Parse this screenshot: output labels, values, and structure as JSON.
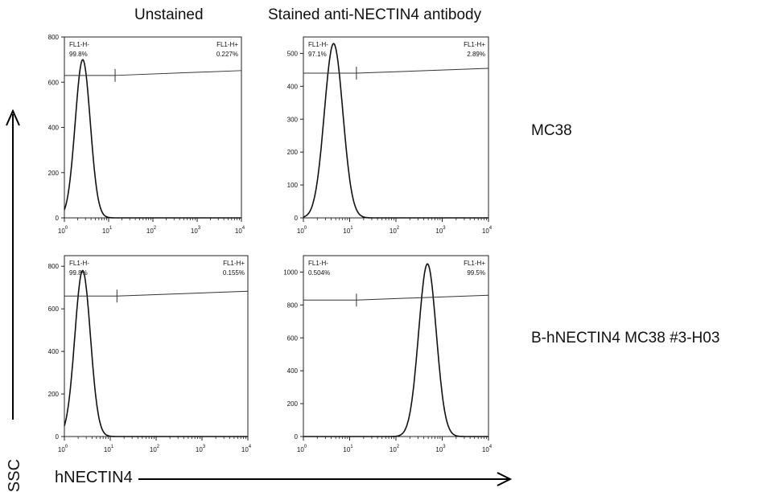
{
  "columns": [
    "Unstained",
    "Stained anti-NECTIN4 antibody"
  ],
  "rows": [
    "MC38",
    "B-hNECTIN4 MC38 #3-H03"
  ],
  "y_axis_note": "SSC",
  "x_axis_note": "hNECTIN4",
  "chart_data": [
    {
      "type": "histogram",
      "title": "",
      "row": "MC38",
      "column": "Unstained",
      "xscale": "log",
      "xlim": [
        1,
        10000
      ],
      "xticks": [
        "10",
        "10",
        "10",
        "10",
        "10"
      ],
      "xtick_exponents": [
        "0",
        "1",
        "2",
        "3",
        "4"
      ],
      "ylim": [
        0,
        800
      ],
      "yticks": [
        "0",
        "200",
        "400",
        "600",
        "800"
      ],
      "gate_threshold": 14,
      "gate_level": 630,
      "peak": {
        "center": 2.6,
        "height": 700,
        "width_decades": 0.17
      },
      "gates": [
        {
          "label": "FL1-H-",
          "percent": "99.8%"
        },
        {
          "label": "FL1-H+",
          "percent": "0.227%"
        }
      ]
    },
    {
      "type": "histogram",
      "title": "",
      "row": "MC38",
      "column": "Stained anti-NECTIN4 antibody",
      "xscale": "log",
      "xlim": [
        1,
        10000
      ],
      "xticks": [
        "10",
        "10",
        "10",
        "10",
        "10"
      ],
      "xtick_exponents": [
        "0",
        "1",
        "2",
        "3",
        "4"
      ],
      "ylim": [
        0,
        550
      ],
      "yticks": [
        "0",
        "100",
        "200",
        "300",
        "400",
        "500"
      ],
      "gate_threshold": 14,
      "gate_level": 440,
      "peak": {
        "center": 4.5,
        "height": 530,
        "width_decades": 0.2
      },
      "gates": [
        {
          "label": "FL1-H-",
          "percent": "97.1%"
        },
        {
          "label": "FL1-H+",
          "percent": "2.89%"
        }
      ]
    },
    {
      "type": "histogram",
      "title": "",
      "row": "B-hNECTIN4 MC38 #3-H03",
      "column": "Unstained",
      "xscale": "log",
      "xlim": [
        1,
        10000
      ],
      "xticks": [
        "10",
        "10",
        "10",
        "10",
        "10"
      ],
      "xtick_exponents": [
        "0",
        "1",
        "2",
        "3",
        "4"
      ],
      "ylim": [
        0,
        850
      ],
      "yticks": [
        "0",
        "200",
        "400",
        "600",
        "800"
      ],
      "gate_threshold": 14,
      "gate_level": 660,
      "peak": {
        "center": 2.5,
        "height": 780,
        "width_decades": 0.17
      },
      "gates": [
        {
          "label": "FL1-H-",
          "percent": "99.8%"
        },
        {
          "label": "FL1-H+",
          "percent": "0.155%"
        }
      ]
    },
    {
      "type": "histogram",
      "title": "",
      "row": "B-hNECTIN4 MC38 #3-H03",
      "column": "Stained anti-NECTIN4 antibody",
      "xscale": "log",
      "xlim": [
        1,
        10000
      ],
      "xticks": [
        "10",
        "10",
        "10",
        "10",
        "10"
      ],
      "xtick_exponents": [
        "0",
        "1",
        "2",
        "3",
        "4"
      ],
      "ylim": [
        0,
        1100
      ],
      "yticks": [
        "0",
        "200",
        "400",
        "600",
        "800",
        "1000"
      ],
      "gate_threshold": 14,
      "gate_level": 830,
      "peak": {
        "center": 480,
        "height": 1050,
        "width_decades": 0.19
      },
      "gates": [
        {
          "label": "FL1-H-",
          "percent": "0.504%"
        },
        {
          "label": "FL1-H+",
          "percent": "99.5%"
        }
      ]
    }
  ]
}
